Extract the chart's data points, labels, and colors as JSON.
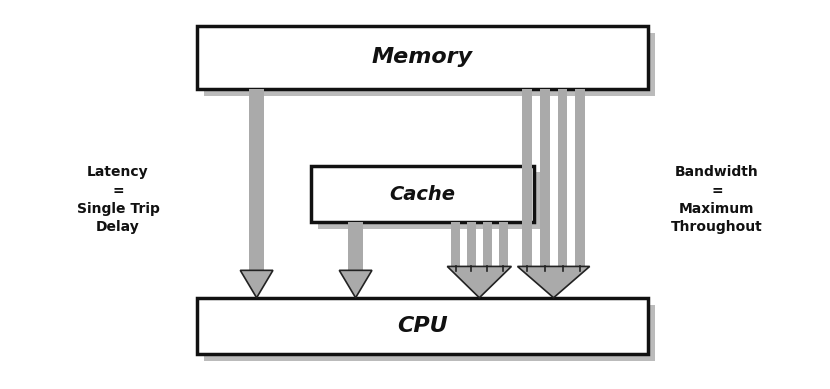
{
  "bg_color": "#ffffff",
  "white": "#ffffff",
  "box_edge": "#111111",
  "shadow_color": "#bbbbbb",
  "arrow_fill": "#aaaaaa",
  "arrow_edge": "#222222",
  "text_color": "#111111",
  "memory_label": "Memory",
  "cache_label": "Cache",
  "cpu_label": "CPU",
  "latency_text": "Latency\n=\nSingle Trip\nDelay",
  "bandwidth_text": "Bandwidth\n=\nMaximum\nThroughout",
  "figsize": [
    8.3,
    3.89
  ],
  "dpi": 100
}
